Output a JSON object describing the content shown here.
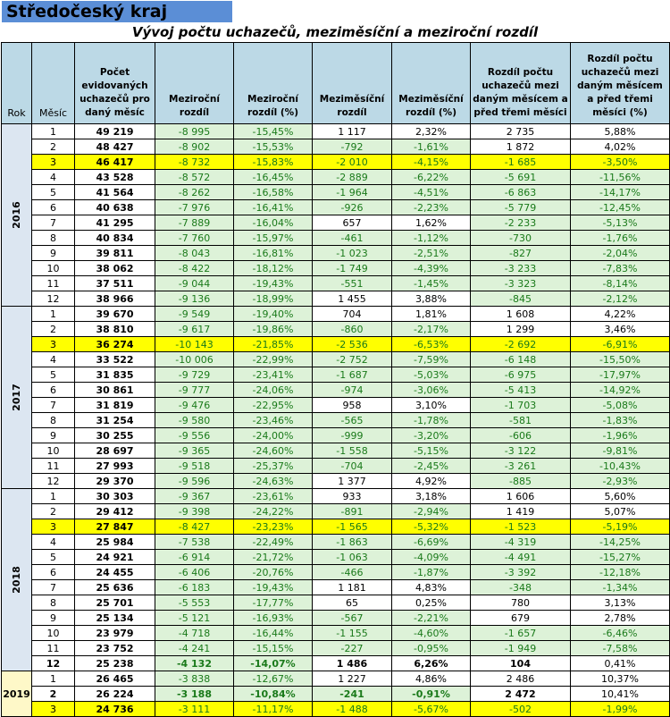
{
  "region": "Středočeský kraj",
  "title": "Vývoj počtu uchazečů, meziměsíční a meziroční rozdíl",
  "headers": {
    "rok": "Rok",
    "mesic": "Měsíc",
    "pocet": "Počet evidovaných uchazečů pro daný měsíc",
    "mezirocni": "Meziroční rozdíl",
    "mezirocni_pct": "Meziroční rozdíl (%)",
    "mezimesicni": "Meziměsíční rozdíl",
    "mezimesicni_pct": "Meziměsíční rozdíl (%)",
    "tri": "Rozdíl počtu uchazečů mezi daným měsícem a před třemi měsíci",
    "tri_pct": "Rozdíl počtu uchazečů mezi daným měsícem a před třemi měsíci (%)"
  },
  "colors": {
    "highlight": "#ffff00",
    "positive_fill": "#ddf2d8",
    "positive_text": "#1a7a1a",
    "header": "#bcd9e6",
    "title_bar": "#5b8ed6"
  },
  "years": [
    {
      "year": "2016",
      "rows": [
        {
          "m": "1",
          "c": "49 219",
          "yr": "-8 995",
          "yrp": "-15,45%",
          "mm": "1 117",
          "mmp": "2,32%",
          "t": "2 735",
          "tp": "5,88%"
        },
        {
          "m": "2",
          "c": "48 427",
          "yr": "-8 902",
          "yrp": "-15,53%",
          "mm": "-792",
          "mmp": "-1,61%",
          "t": "1 872",
          "tp": "4,02%"
        },
        {
          "m": "3",
          "c": "46 417",
          "yr": "-8 732",
          "yrp": "-15,83%",
          "mm": "-2 010",
          "mmp": "-4,15%",
          "t": "-1 685",
          "tp": "-3,50%",
          "hl": true
        },
        {
          "m": "4",
          "c": "43 528",
          "yr": "-8 572",
          "yrp": "-16,45%",
          "mm": "-2 889",
          "mmp": "-6,22%",
          "t": "-5 691",
          "tp": "-11,56%"
        },
        {
          "m": "5",
          "c": "41 564",
          "yr": "-8 262",
          "yrp": "-16,58%",
          "mm": "-1 964",
          "mmp": "-4,51%",
          "t": "-6 863",
          "tp": "-14,17%"
        },
        {
          "m": "6",
          "c": "40 638",
          "yr": "-7 976",
          "yrp": "-16,41%",
          "mm": "-926",
          "mmp": "-2,23%",
          "t": "-5 779",
          "tp": "-12,45%"
        },
        {
          "m": "7",
          "c": "41 295",
          "yr": "-7 889",
          "yrp": "-16,04%",
          "mm": "657",
          "mmp": "1,62%",
          "t": "-2 233",
          "tp": "-5,13%"
        },
        {
          "m": "8",
          "c": "40 834",
          "yr": "-7 760",
          "yrp": "-15,97%",
          "mm": "-461",
          "mmp": "-1,12%",
          "t": "-730",
          "tp": "-1,76%"
        },
        {
          "m": "9",
          "c": "39 811",
          "yr": "-8 043",
          "yrp": "-16,81%",
          "mm": "-1 023",
          "mmp": "-2,51%",
          "t": "-827",
          "tp": "-2,04%"
        },
        {
          "m": "10",
          "c": "38 062",
          "yr": "-8 422",
          "yrp": "-18,12%",
          "mm": "-1 749",
          "mmp": "-4,39%",
          "t": "-3 233",
          "tp": "-7,83%"
        },
        {
          "m": "11",
          "c": "37 511",
          "yr": "-9 044",
          "yrp": "-19,43%",
          "mm": "-551",
          "mmp": "-1,45%",
          "t": "-3 323",
          "tp": "-8,14%"
        },
        {
          "m": "12",
          "c": "38 966",
          "yr": "-9 136",
          "yrp": "-18,99%",
          "mm": "1 455",
          "mmp": "3,88%",
          "t": "-845",
          "tp": "-2,12%"
        }
      ]
    },
    {
      "year": "2017",
      "rows": [
        {
          "m": "1",
          "c": "39 670",
          "yr": "-9 549",
          "yrp": "-19,40%",
          "mm": "704",
          "mmp": "1,81%",
          "t": "1 608",
          "tp": "4,22%"
        },
        {
          "m": "2",
          "c": "38 810",
          "yr": "-9 617",
          "yrp": "-19,86%",
          "mm": "-860",
          "mmp": "-2,17%",
          "t": "1 299",
          "tp": "3,46%"
        },
        {
          "m": "3",
          "c": "36 274",
          "yr": "-10 143",
          "yrp": "-21,85%",
          "mm": "-2 536",
          "mmp": "-6,53%",
          "t": "-2 692",
          "tp": "-6,91%",
          "hl": true
        },
        {
          "m": "4",
          "c": "33 522",
          "yr": "-10 006",
          "yrp": "-22,99%",
          "mm": "-2 752",
          "mmp": "-7,59%",
          "t": "-6 148",
          "tp": "-15,50%"
        },
        {
          "m": "5",
          "c": "31 835",
          "yr": "-9 729",
          "yrp": "-23,41%",
          "mm": "-1 687",
          "mmp": "-5,03%",
          "t": "-6 975",
          "tp": "-17,97%"
        },
        {
          "m": "6",
          "c": "30 861",
          "yr": "-9 777",
          "yrp": "-24,06%",
          "mm": "-974",
          "mmp": "-3,06%",
          "t": "-5 413",
          "tp": "-14,92%"
        },
        {
          "m": "7",
          "c": "31 819",
          "yr": "-9 476",
          "yrp": "-22,95%",
          "mm": "958",
          "mmp": "3,10%",
          "t": "-1 703",
          "tp": "-5,08%"
        },
        {
          "m": "8",
          "c": "31 254",
          "yr": "-9 580",
          "yrp": "-23,46%",
          "mm": "-565",
          "mmp": "-1,78%",
          "t": "-581",
          "tp": "-1,83%"
        },
        {
          "m": "9",
          "c": "30 255",
          "yr": "-9 556",
          "yrp": "-24,00%",
          "mm": "-999",
          "mmp": "-3,20%",
          "t": "-606",
          "tp": "-1,96%"
        },
        {
          "m": "10",
          "c": "28 697",
          "yr": "-9 365",
          "yrp": "-24,60%",
          "mm": "-1 558",
          "mmp": "-5,15%",
          "t": "-3 122",
          "tp": "-9,81%"
        },
        {
          "m": "11",
          "c": "27 993",
          "yr": "-9 518",
          "yrp": "-25,37%",
          "mm": "-704",
          "mmp": "-2,45%",
          "t": "-3 261",
          "tp": "-10,43%"
        },
        {
          "m": "12",
          "c": "29 370",
          "yr": "-9 596",
          "yrp": "-24,63%",
          "mm": "1 377",
          "mmp": "4,92%",
          "t": "-885",
          "tp": "-2,93%"
        }
      ]
    },
    {
      "year": "2018",
      "rows": [
        {
          "m": "1",
          "c": "30 303",
          "yr": "-9 367",
          "yrp": "-23,61%",
          "mm": "933",
          "mmp": "3,18%",
          "t": "1 606",
          "tp": "5,60%"
        },
        {
          "m": "2",
          "c": "29 412",
          "yr": "-9 398",
          "yrp": "-24,22%",
          "mm": "-891",
          "mmp": "-2,94%",
          "t": "1 419",
          "tp": "5,07%"
        },
        {
          "m": "3",
          "c": "27 847",
          "yr": "-8 427",
          "yrp": "-23,23%",
          "mm": "-1 565",
          "mmp": "-5,32%",
          "t": "-1 523",
          "tp": "-5,19%",
          "hl": true
        },
        {
          "m": "4",
          "c": "25 984",
          "yr": "-7 538",
          "yrp": "-22,49%",
          "mm": "-1 863",
          "mmp": "-6,69%",
          "t": "-4 319",
          "tp": "-14,25%"
        },
        {
          "m": "5",
          "c": "24 921",
          "yr": "-6 914",
          "yrp": "-21,72%",
          "mm": "-1 063",
          "mmp": "-4,09%",
          "t": "-4 491",
          "tp": "-15,27%"
        },
        {
          "m": "6",
          "c": "24 455",
          "yr": "-6 406",
          "yrp": "-20,76%",
          "mm": "-466",
          "mmp": "-1,87%",
          "t": "-3 392",
          "tp": "-12,18%"
        },
        {
          "m": "7",
          "c": "25 636",
          "yr": "-6 183",
          "yrp": "-19,43%",
          "mm": "1 181",
          "mmp": "4,83%",
          "t": "-348",
          "tp": "-1,34%"
        },
        {
          "m": "8",
          "c": "25 701",
          "yr": "-5 553",
          "yrp": "-17,77%",
          "mm": "65",
          "mmp": "0,25%",
          "t": "780",
          "tp": "3,13%"
        },
        {
          "m": "9",
          "c": "25 134",
          "yr": "-5 121",
          "yrp": "-16,93%",
          "mm": "-567",
          "mmp": "-2,21%",
          "t": "679",
          "tp": "2,78%"
        },
        {
          "m": "10",
          "c": "23 979",
          "yr": "-4 718",
          "yrp": "-16,44%",
          "mm": "-1 155",
          "mmp": "-4,60%",
          "t": "-1 657",
          "tp": "-6,46%"
        },
        {
          "m": "11",
          "c": "23 752",
          "yr": "-4 241",
          "yrp": "-15,15%",
          "mm": "-227",
          "mmp": "-0,95%",
          "t": "-1 949",
          "tp": "-7,58%"
        },
        {
          "m": "12",
          "c": "25 238",
          "yr": "-4 132",
          "yrp": "-14,07%",
          "mm": "1 486",
          "mmp": "6,26%",
          "t": "104",
          "tp": "0,41%",
          "bold": true
        }
      ]
    },
    {
      "year": "2019",
      "rows": [
        {
          "m": "1",
          "c": "26 465",
          "yr": "-3 838",
          "yrp": "-12,67%",
          "mm": "1 227",
          "mmp": "4,86%",
          "t": "2 486",
          "tp": "10,37%"
        },
        {
          "m": "2",
          "c": "26 224",
          "yr": "-3 188",
          "yrp": "-10,84%",
          "mm": "-241",
          "mmp": "-0,91%",
          "t": "2 472",
          "tp": "10,41%",
          "bold": true
        },
        {
          "m": "3",
          "c": "24 736",
          "yr": "-3 111",
          "yrp": "-11,17%",
          "mm": "-1 488",
          "mmp": "-5,67%",
          "t": "-502",
          "tp": "-1,99%",
          "hl": true
        }
      ]
    }
  ]
}
